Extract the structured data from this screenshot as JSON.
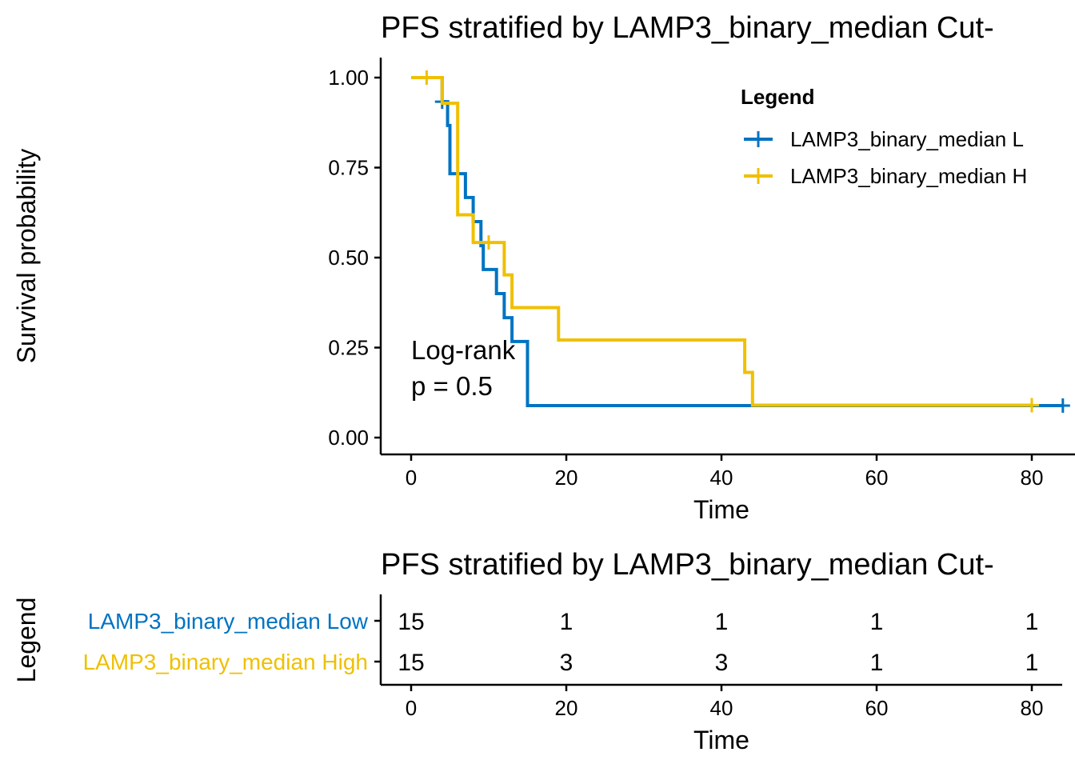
{
  "chart_data": [
    {
      "type": "line",
      "subtype": "kaplan-meier",
      "title": "PFS stratified by LAMP3_binary_median Cut-",
      "xlabel": "Time",
      "ylabel": "Survival probability",
      "xlim": [
        -4,
        85
      ],
      "ylim": [
        -0.05,
        1.05
      ],
      "x_ticks": [
        0,
        20,
        40,
        60,
        80
      ],
      "y_ticks": [
        0,
        0.25,
        0.5,
        0.75,
        1
      ],
      "y_tick_labels": [
        "0.00",
        "0.25",
        "0.50",
        "0.75",
        "1.00"
      ],
      "x_tick_labels": [
        "0",
        "20",
        "40",
        "60",
        "80"
      ],
      "grid": false,
      "legend": {
        "title": "Legend",
        "position": "top-right",
        "entries": [
          "LAMP3_binary_median L",
          "LAMP3_binary_median H"
        ]
      },
      "annotation": [
        "Log-rank",
        "p = 0.5"
      ],
      "annotation_pos": {
        "x": 0,
        "y1": 0.245,
        "y2": 0.145
      },
      "series": [
        {
          "name": "LAMP3_binary_median Low",
          "color": "#0073C2",
          "steps": [
            [
              0,
              1.0
            ],
            [
              4,
              0.933
            ],
            [
              4.7,
              0.867
            ],
            [
              5,
              0.733
            ],
            [
              7,
              0.667
            ],
            [
              8,
              0.6
            ],
            [
              9,
              0.533
            ],
            [
              9.3,
              0.467
            ],
            [
              11,
              0.4
            ],
            [
              12,
              0.333
            ],
            [
              13,
              0.267
            ],
            [
              15,
              0.089
            ],
            [
              84,
              0.089
            ]
          ],
          "censor": [
            [
              4,
              0.933
            ],
            [
              84,
              0.089
            ]
          ]
        },
        {
          "name": "LAMP3_binary_median High",
          "color": "#EFC000",
          "steps": [
            [
              0,
              1.0
            ],
            [
              4,
              0.929
            ],
            [
              6,
              0.619
            ],
            [
              8,
              0.542
            ],
            [
              12,
              0.452
            ],
            [
              13,
              0.361
            ],
            [
              19,
              0.271
            ],
            [
              43,
              0.181
            ],
            [
              44,
              0.09
            ],
            [
              80,
              0.09
            ]
          ],
          "censor": [
            [
              2,
              1.0
            ],
            [
              10,
              0.542
            ],
            [
              80,
              0.09
            ]
          ]
        }
      ]
    },
    {
      "type": "table",
      "subtype": "risk-table",
      "title": "PFS stratified by LAMP3_binary_median Cut-",
      "xlabel": "Time",
      "ylabel": "Legend",
      "x_ticks": [
        0,
        20,
        40,
        60,
        80
      ],
      "x_tick_labels": [
        "0",
        "20",
        "40",
        "60",
        "80"
      ],
      "xlim": [
        -4,
        85
      ],
      "rows": [
        {
          "label": "LAMP3_binary_median Low",
          "color": "#0073C2",
          "values": [
            "15",
            "1",
            "1",
            "1",
            "1"
          ]
        },
        {
          "label": "LAMP3_binary_median High",
          "color": "#EFC000",
          "values": [
            "15",
            "3",
            "3",
            "1",
            "1"
          ]
        }
      ]
    }
  ]
}
